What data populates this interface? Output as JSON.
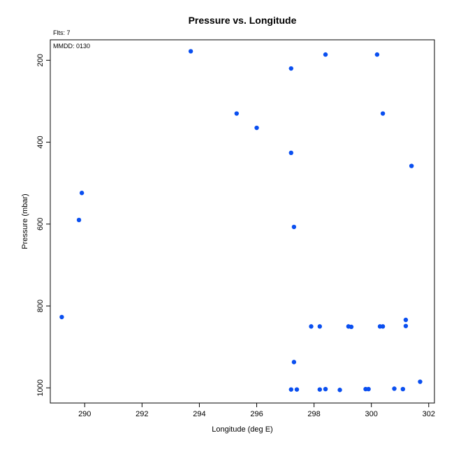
{
  "chart_data": {
    "type": "scatter",
    "title": "Pressure vs. Longitude",
    "xlabel": "Longitude (deg E)",
    "ylabel": "Pressure (mbar)",
    "annotations": [
      "Flts: 7",
      "MMDD: 0130"
    ],
    "xlim": [
      288.8,
      302.2
    ],
    "ylim": [
      1037,
      150
    ],
    "y_inverted": true,
    "xticks": [
      290,
      292,
      294,
      296,
      298,
      300,
      302
    ],
    "yticks": [
      200,
      400,
      600,
      800,
      1000
    ],
    "grid": false,
    "marker_color": "#0a4ff0",
    "points": [
      {
        "x": 293.7,
        "y": 178
      },
      {
        "x": 298.4,
        "y": 186
      },
      {
        "x": 300.2,
        "y": 186
      },
      {
        "x": 297.2,
        "y": 220
      },
      {
        "x": 295.3,
        "y": 330
      },
      {
        "x": 300.4,
        "y": 330
      },
      {
        "x": 296.0,
        "y": 365
      },
      {
        "x": 297.2,
        "y": 426
      },
      {
        "x": 301.4,
        "y": 458
      },
      {
        "x": 289.9,
        "y": 524
      },
      {
        "x": 289.8,
        "y": 590
      },
      {
        "x": 297.3,
        "y": 607
      },
      {
        "x": 289.2,
        "y": 827
      },
      {
        "x": 301.2,
        "y": 834
      },
      {
        "x": 297.9,
        "y": 850
      },
      {
        "x": 298.2,
        "y": 850
      },
      {
        "x": 299.2,
        "y": 850
      },
      {
        "x": 299.3,
        "y": 851
      },
      {
        "x": 300.3,
        "y": 850
      },
      {
        "x": 300.4,
        "y": 850
      },
      {
        "x": 301.2,
        "y": 849
      },
      {
        "x": 297.3,
        "y": 937
      },
      {
        "x": 301.7,
        "y": 985
      },
      {
        "x": 297.2,
        "y": 1004
      },
      {
        "x": 297.4,
        "y": 1004
      },
      {
        "x": 298.2,
        "y": 1004
      },
      {
        "x": 298.4,
        "y": 1003
      },
      {
        "x": 298.9,
        "y": 1005
      },
      {
        "x": 299.8,
        "y": 1003
      },
      {
        "x": 299.9,
        "y": 1003
      },
      {
        "x": 300.8,
        "y": 1002
      },
      {
        "x": 301.1,
        "y": 1003
      }
    ]
  }
}
